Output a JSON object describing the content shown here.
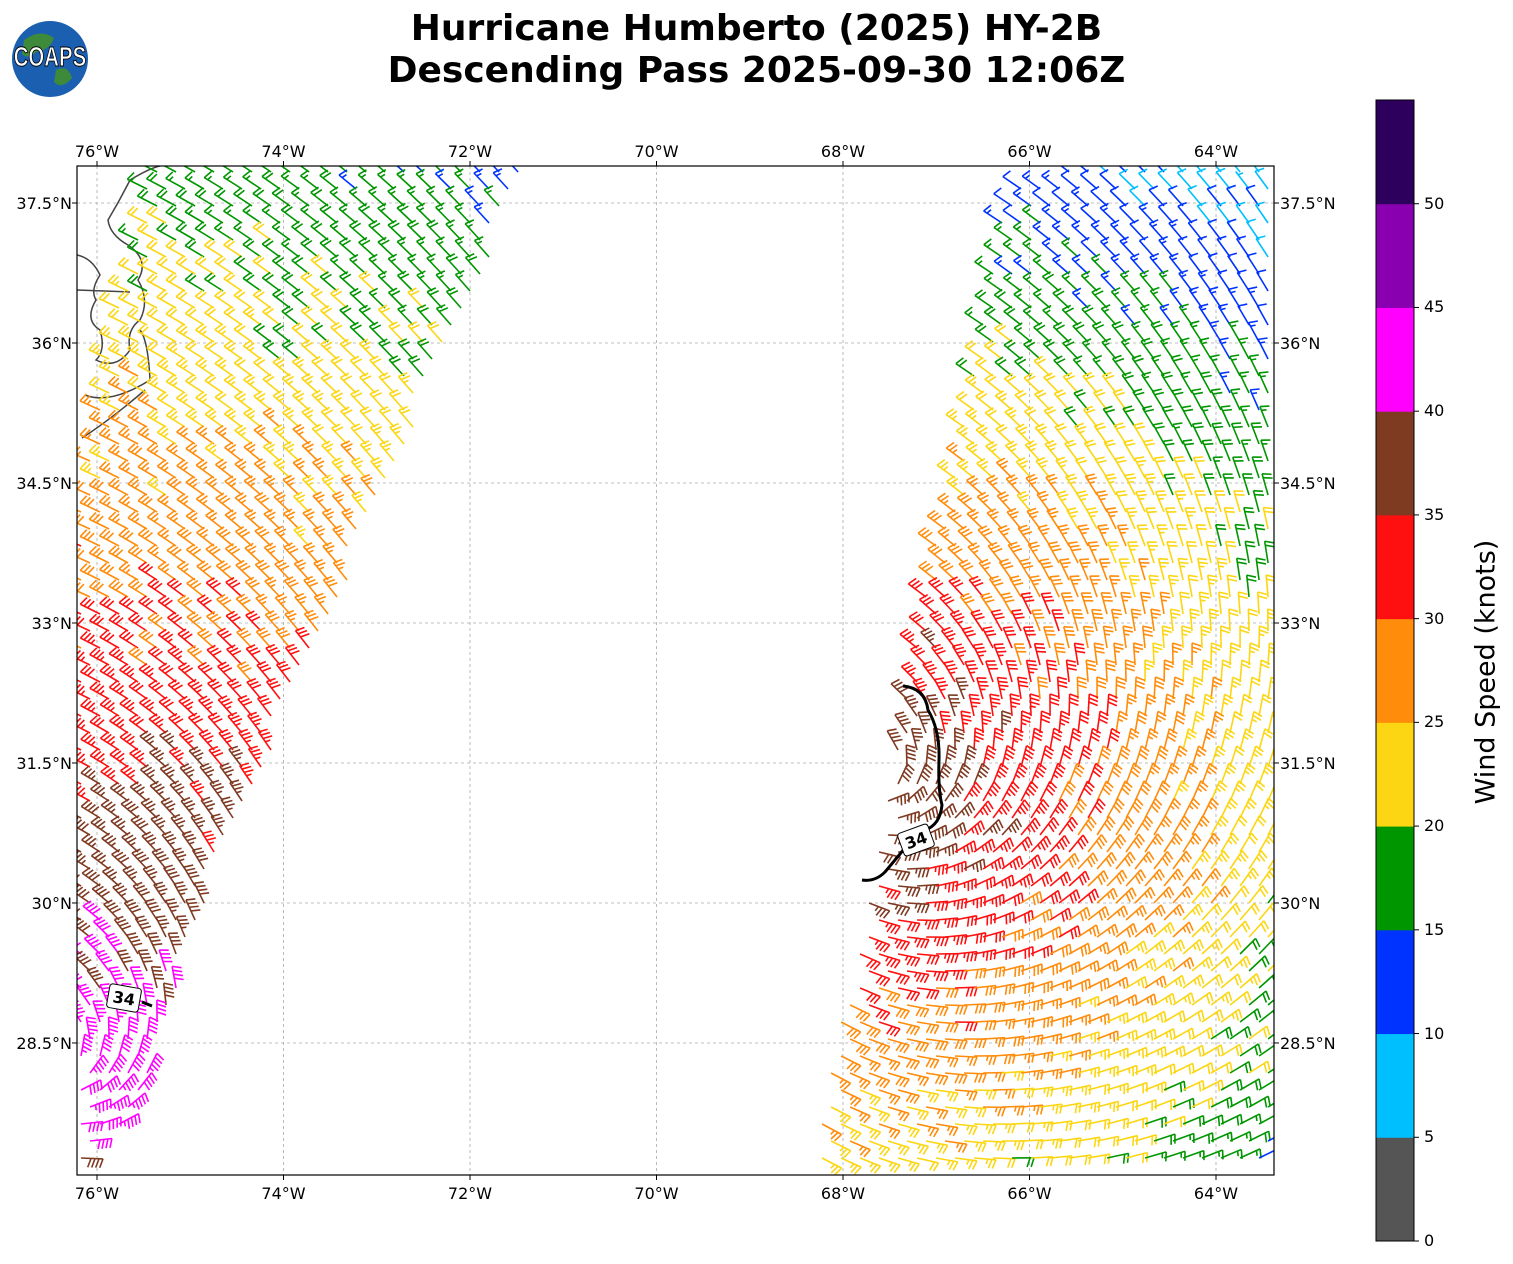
{
  "title_line1": "Hurricane Humberto (2025) HY-2B",
  "title_line2": "Descending Pass 2025-09-30 12:06Z",
  "logo_text": "COAPS",
  "chart_data": {
    "type": "wind-barb map",
    "lon_range": [
      -76.2,
      -63.4
    ],
    "lat_range": [
      26.6,
      37.9
    ],
    "x_ticks": [
      "76°W",
      "74°W",
      "72°W",
      "70°W",
      "68°W",
      "66°W",
      "64°W"
    ],
    "x_tick_values": [
      -76,
      -74,
      -72,
      -70,
      -68,
      -66,
      -64
    ],
    "y_ticks": [
      "37.5°N",
      "36°N",
      "34.5°N",
      "33°N",
      "31.5°N",
      "30°N",
      "28.5°N"
    ],
    "y_tick_values": [
      37.5,
      36,
      34.5,
      33,
      31.5,
      30,
      28.5
    ],
    "grid": true,
    "contour_label": "34",
    "colorbar": {
      "label": "Wind Speed (knots)",
      "ticks": [
        "0",
        "5",
        "10",
        "15",
        "20",
        "25",
        "30",
        "35",
        "40",
        "45",
        "50"
      ],
      "bounds": [
        0,
        5,
        10,
        15,
        20,
        25,
        30,
        35,
        40,
        45,
        50,
        55
      ],
      "colors": [
        "#555555",
        "#00bfff",
        "#0033ff",
        "#009600",
        "#fcd612",
        "#ff8c0a",
        "#ff1010",
        "#7f3a22",
        "#ff00ff",
        "#8800b0",
        "#2e005e"
      ]
    }
  }
}
